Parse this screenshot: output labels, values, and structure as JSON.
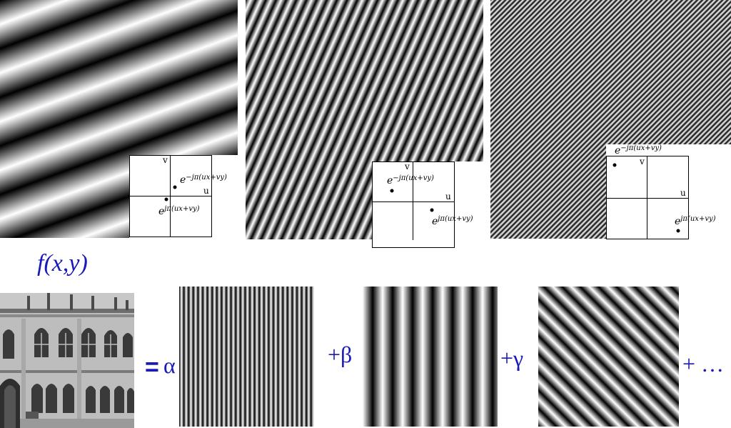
{
  "panels": [
    {
      "axis_v": "v",
      "axis_u": "u",
      "expr_neg": "e−jπ(ux+vy)",
      "expr_pos": "ejπ(ux+vy)"
    },
    {
      "axis_v": "v",
      "axis_u": "u",
      "expr_neg": "e−jπ(ux+vy)",
      "expr_pos": "ejπ(ux+vy)"
    },
    {
      "axis_v": "v",
      "axis_u": "u",
      "expr_neg": "e−jπ(ux+vy)",
      "expr_pos": "ejπ(ux+vy)"
    }
  ],
  "equation": {
    "function_label": "f(x,y)",
    "equals": "=",
    "coef1": "α",
    "coef2": "+β",
    "coef3": "+γ",
    "ellipsis": "+ …"
  },
  "colors": {
    "equation": "#1a1ab8"
  }
}
